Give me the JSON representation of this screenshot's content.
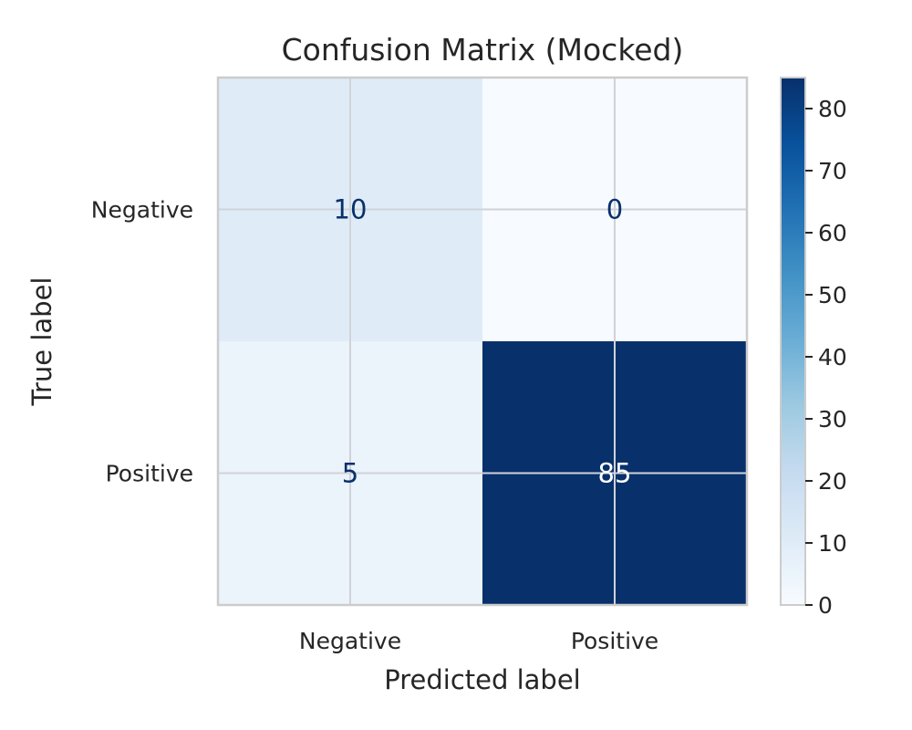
{
  "chart_data": {
    "type": "heatmap",
    "title": "Confusion Matrix (Mocked)",
    "xlabel": "Predicted label",
    "ylabel": "True label",
    "x_categories": [
      "Negative",
      "Positive"
    ],
    "y_categories": [
      "Negative",
      "Positive"
    ],
    "values": [
      [
        10,
        0
      ],
      [
        5,
        85
      ]
    ],
    "colormap": "Blues",
    "color_range": [
      0,
      85
    ],
    "colorbar_ticks": [
      0,
      10,
      20,
      30,
      40,
      50,
      60,
      70,
      80
    ],
    "grid": true,
    "colors": {
      "text_dark": "#08306b",
      "text_light": "#ffffff",
      "grid": "#cfd3d9",
      "frame": "#cccccc",
      "label": "#262626"
    }
  }
}
